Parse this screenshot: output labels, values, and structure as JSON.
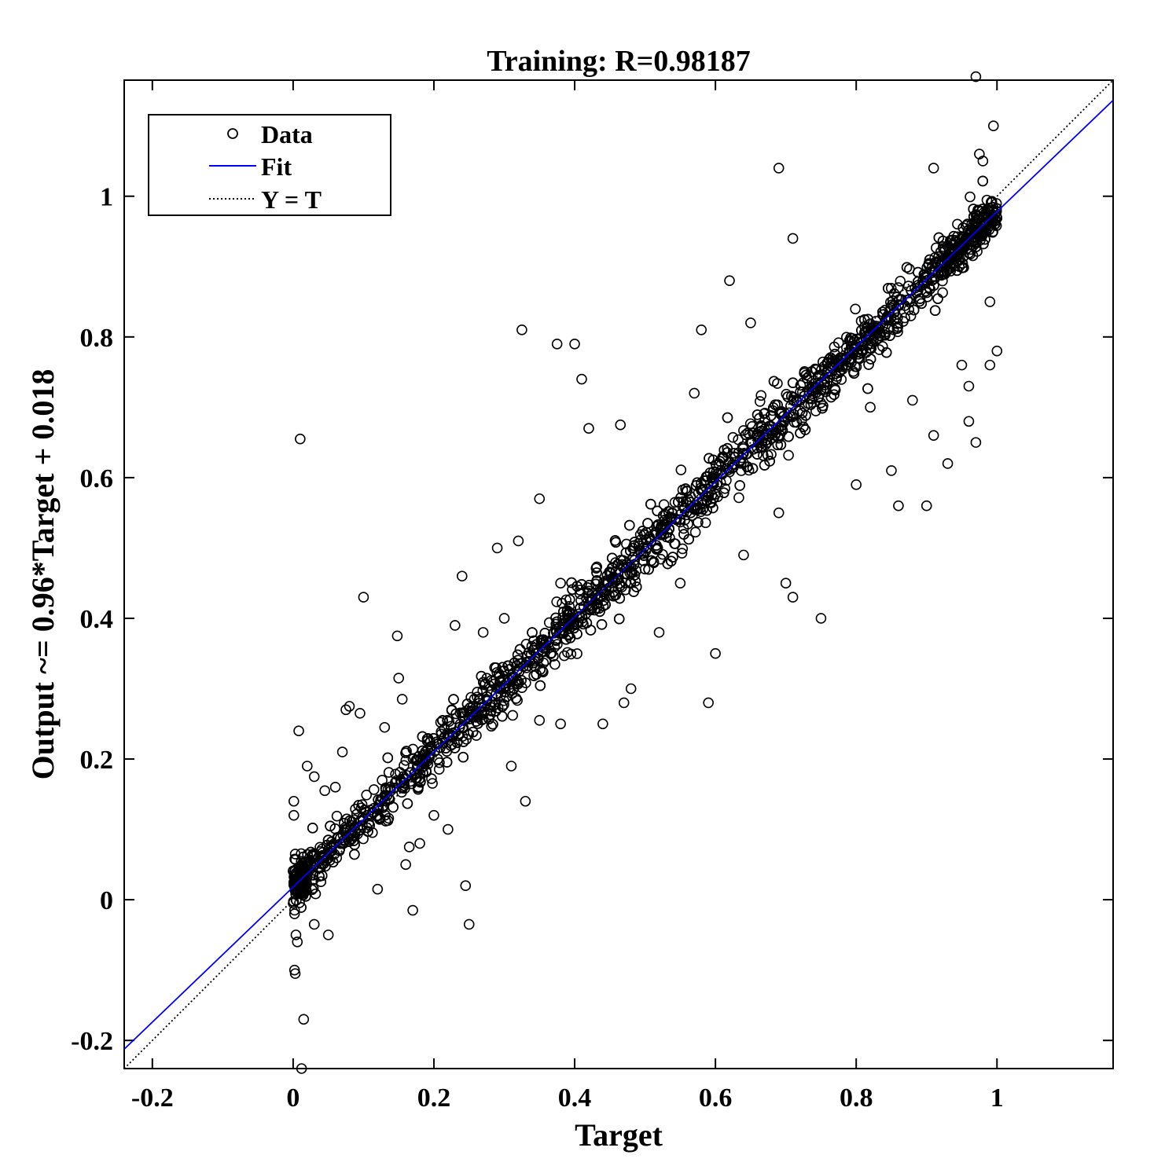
{
  "chart_data": {
    "type": "scatter",
    "title": "Training: R=0.98187",
    "xlabel": "Target",
    "ylabel": "Output ~= 0.96*Target + 0.018",
    "xlim": [
      -0.24,
      1.165
    ],
    "ylim": [
      -0.24,
      1.165
    ],
    "xticks": [
      -0.2,
      0,
      0.2,
      0.4,
      0.6,
      0.8,
      1
    ],
    "yticks": [
      -0.2,
      0,
      0.2,
      0.4,
      0.6,
      0.8,
      1
    ],
    "xtick_labels": [
      "-0.2",
      "0",
      "0.2",
      "0.4",
      "0.6",
      "0.8",
      "1"
    ],
    "ytick_labels": [
      "-0.2",
      "0",
      "0.2",
      "0.4",
      "0.6",
      "0.8",
      "1"
    ],
    "grid": false,
    "legend": {
      "placement": "top-left",
      "entries": [
        {
          "label": "Data",
          "marker": "open-circle"
        },
        {
          "label": "Fit",
          "line": "solid"
        },
        {
          "label": "Y = T",
          "line": "dotted"
        }
      ]
    },
    "colors": {
      "data": "#000000",
      "fit": "#0000ff",
      "identity": "#000000"
    },
    "fit": {
      "slope": 0.96,
      "intercept": 0.018,
      "name": "Fit"
    },
    "identity": {
      "name": "Y = T"
    },
    "series": [
      {
        "name": "Data",
        "points": [
          [
            0.003,
            0.065
          ],
          [
            0.001,
            0.14
          ],
          [
            0.001,
            0.12
          ],
          [
            0.005,
            0.035
          ],
          [
            0.002,
            -0.02
          ],
          [
            0.004,
            -0.05
          ],
          [
            0.006,
            -0.06
          ],
          [
            0.002,
            -0.1
          ],
          [
            0.003,
            -0.105
          ],
          [
            0.015,
            -0.17
          ],
          [
            0.012,
            -0.24
          ],
          [
            0.01,
            0.655
          ],
          [
            0.008,
            0.24
          ],
          [
            0.02,
            0.19
          ],
          [
            0.03,
            0.175
          ],
          [
            0.045,
            0.155
          ],
          [
            0.06,
            0.16
          ],
          [
            0.07,
            0.21
          ],
          [
            0.075,
            0.27
          ],
          [
            0.08,
            0.275
          ],
          [
            0.095,
            0.265
          ],
          [
            0.1,
            0.43
          ],
          [
            0.05,
            0.085
          ],
          [
            0.05,
            -0.05
          ],
          [
            0.03,
            -0.035
          ],
          [
            0.12,
            0.015
          ],
          [
            0.13,
            0.245
          ],
          [
            0.15,
            0.315
          ],
          [
            0.148,
            0.375
          ],
          [
            0.155,
            0.285
          ],
          [
            0.165,
            0.075
          ],
          [
            0.17,
            -0.015
          ],
          [
            0.16,
            0.05
          ],
          [
            0.18,
            0.08
          ],
          [
            0.2,
            0.12
          ],
          [
            0.22,
            0.1
          ],
          [
            0.23,
            0.39
          ],
          [
            0.24,
            0.46
          ],
          [
            0.245,
            0.02
          ],
          [
            0.25,
            -0.035
          ],
          [
            0.27,
            0.38
          ],
          [
            0.29,
            0.5
          ],
          [
            0.3,
            0.4
          ],
          [
            0.31,
            0.19
          ],
          [
            0.32,
            0.51
          ],
          [
            0.325,
            0.81
          ],
          [
            0.33,
            0.14
          ],
          [
            0.35,
            0.57
          ],
          [
            0.35,
            0.255
          ],
          [
            0.375,
            0.79
          ],
          [
            0.38,
            0.25
          ],
          [
            0.38,
            0.45
          ],
          [
            0.4,
            0.79
          ],
          [
            0.41,
            0.74
          ],
          [
            0.42,
            0.67
          ],
          [
            0.44,
            0.25
          ],
          [
            0.465,
            0.675
          ],
          [
            0.47,
            0.28
          ],
          [
            0.48,
            0.3
          ],
          [
            0.5,
            0.47
          ],
          [
            0.52,
            0.38
          ],
          [
            0.55,
            0.45
          ],
          [
            0.57,
            0.72
          ],
          [
            0.58,
            0.81
          ],
          [
            0.59,
            0.28
          ],
          [
            0.6,
            0.35
          ],
          [
            0.62,
            0.88
          ],
          [
            0.64,
            0.49
          ],
          [
            0.65,
            0.82
          ],
          [
            0.69,
            0.55
          ],
          [
            0.69,
            1.04
          ],
          [
            0.7,
            0.45
          ],
          [
            0.71,
            0.43
          ],
          [
            0.71,
            0.94
          ],
          [
            0.75,
            0.4
          ],
          [
            0.8,
            0.59
          ],
          [
            0.82,
            0.7
          ],
          [
            0.85,
            0.61
          ],
          [
            0.86,
            0.56
          ],
          [
            0.88,
            0.71
          ],
          [
            0.9,
            0.56
          ],
          [
            0.91,
            1.04
          ],
          [
            0.91,
            0.66
          ],
          [
            0.93,
            0.62
          ],
          [
            0.95,
            0.76
          ],
          [
            0.97,
            0.65
          ],
          [
            0.97,
            1.17
          ],
          [
            0.975,
            1.06
          ],
          [
            0.98,
            1.05
          ],
          [
            0.995,
            1.1
          ],
          [
            0.99,
            0.76
          ],
          [
            1.0,
            0.78
          ],
          [
            0.96,
            0.73
          ],
          [
            0.96,
            0.68
          ],
          [
            0.99,
            0.85
          ]
        ],
        "dense_trend": {
          "slope": 0.96,
          "intercept": 0.018,
          "x_range": [
            0.0,
            1.0
          ],
          "count": 2400
        }
      }
    ]
  }
}
